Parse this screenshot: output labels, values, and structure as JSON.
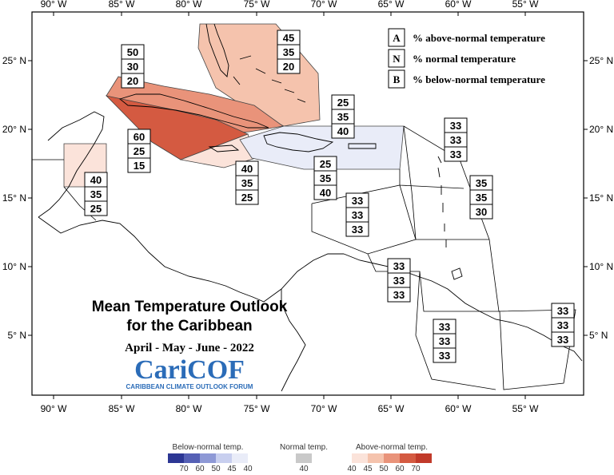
{
  "map": {
    "lon_ticks": [
      "90° W",
      "85° W",
      "80° W",
      "75° W",
      "70° W",
      "65° W",
      "60° W",
      "55° W"
    ],
    "lat_ticks": [
      "25° N",
      "20° N",
      "15° N",
      "10° N",
      "5° N"
    ],
    "title_line1": "Mean Temperature Outlook",
    "title_line2": "for the Caribbean",
    "period": "April - May - June - 2022",
    "logo_text": "CariCOF",
    "logo_sub": "CARIBBEAN CLIMATE OUTLOOK FORUM"
  },
  "legend": {
    "items": [
      {
        "key": "A",
        "label": "% above-normal temperature"
      },
      {
        "key": "N",
        "label": "% normal temperature"
      },
      {
        "key": "B",
        "label": "% below-normal temperature"
      }
    ]
  },
  "colors": {
    "above_40": "#fbe3da",
    "above_45": "#f5c3ad",
    "above_50": "#e9937a",
    "above_60": "#d45a41",
    "above_70": "#c13a2a",
    "below_40": "#e9ecf8",
    "below_45": "#c8cfef",
    "below_50": "#8e99d6",
    "below_60": "#5560b5",
    "below_70": "#2c3794",
    "normal": "#c9c9c9",
    "boundary": "#000000",
    "land": "#000000"
  },
  "regions": [
    {
      "id": "bahamas",
      "values": [
        "45",
        "35",
        "20"
      ]
    },
    {
      "id": "cuba-west",
      "values": [
        "50",
        "30",
        "20"
      ]
    },
    {
      "id": "cuba-south",
      "values": [
        "60",
        "25",
        "15"
      ]
    },
    {
      "id": "belize",
      "values": [
        "40",
        "35",
        "25"
      ]
    },
    {
      "id": "jamaica",
      "values": [
        "40",
        "35",
        "25"
      ]
    },
    {
      "id": "hispaniola-north",
      "values": [
        "25",
        "35",
        "40"
      ]
    },
    {
      "id": "hispaniola-south",
      "values": [
        "25",
        "35",
        "40"
      ]
    },
    {
      "id": "leeward",
      "values": [
        "33",
        "33",
        "33"
      ]
    },
    {
      "id": "windward",
      "values": [
        "35",
        "35",
        "30"
      ]
    },
    {
      "id": "caribbean-sea",
      "values": [
        "33",
        "33",
        "33"
      ]
    },
    {
      "id": "abc-islands",
      "values": [
        "33",
        "33",
        "33"
      ]
    },
    {
      "id": "guyana",
      "values": [
        "33",
        "33",
        "33"
      ]
    },
    {
      "id": "french-guiana",
      "values": [
        "33",
        "33",
        "33"
      ]
    }
  ],
  "scale": {
    "below_title": "Below-normal temp.",
    "below_ticks": [
      "70",
      "60",
      "50",
      "45",
      "40"
    ],
    "normal_title": "Normal temp.",
    "normal_tick": "40",
    "above_title": "Above-normal temp.",
    "above_ticks": [
      "40",
      "45",
      "50",
      "60",
      "70"
    ]
  }
}
